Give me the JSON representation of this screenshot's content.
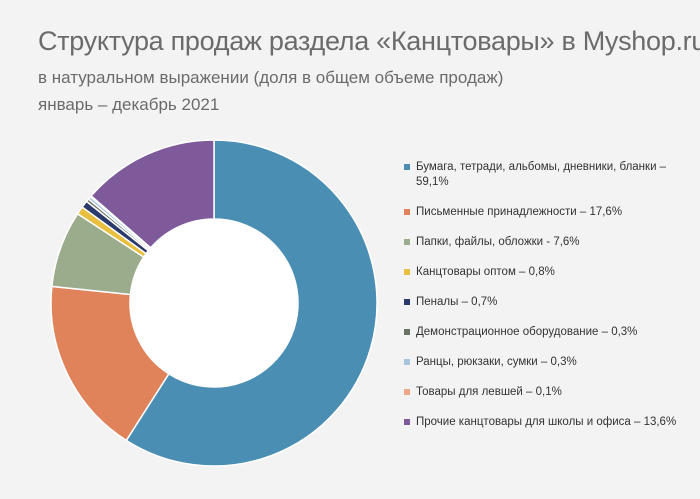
{
  "header": {
    "title": "Структура продаж раздела «Канцтовары» в Myshop.ru",
    "subtitle": "в натуральном выражении (доля в общем объеме продаж)",
    "period": "январь – декабрь 2021"
  },
  "legend": [
    "Бумага, тетради, альбомы, дневники, бланки – 59,1%",
    "Письменные принадлежности – 17,6%",
    "Папки, файлы, обложки - 7,6%",
    "Канцтовары оптом – 0,8%",
    "Пеналы – 0,7%",
    "Демонстрационное оборудование – 0,3%",
    "Ранцы, рюкзаки, сумки – 0,3%",
    "Товары для левшей – 0,1%",
    "Прочие канцтовары для школы и офиса – 13,6%"
  ],
  "chart_data": {
    "type": "pie",
    "categories": [
      "Бумага, тетради, альбомы, дневники, бланки",
      "Письменные принадлежности",
      "Папки, файлы, обложки",
      "Канцтовары оптом",
      "Пеналы",
      "Демонстрационное оборудование",
      "Ранцы, рюкзаки, сумки",
      "Товары для левшей",
      "Прочие канцтовары для школы и офиса"
    ],
    "values": [
      59.1,
      17.6,
      7.6,
      0.8,
      0.7,
      0.3,
      0.3,
      0.1,
      13.6
    ],
    "colors": [
      "#4a8fb3",
      "#e0825a",
      "#9bac8c",
      "#e8bf3e",
      "#2a3a6a",
      "#6a7363",
      "#a6c4de",
      "#f0a488",
      "#7e5a9b"
    ],
    "legend_position": "right",
    "style": "donut"
  }
}
